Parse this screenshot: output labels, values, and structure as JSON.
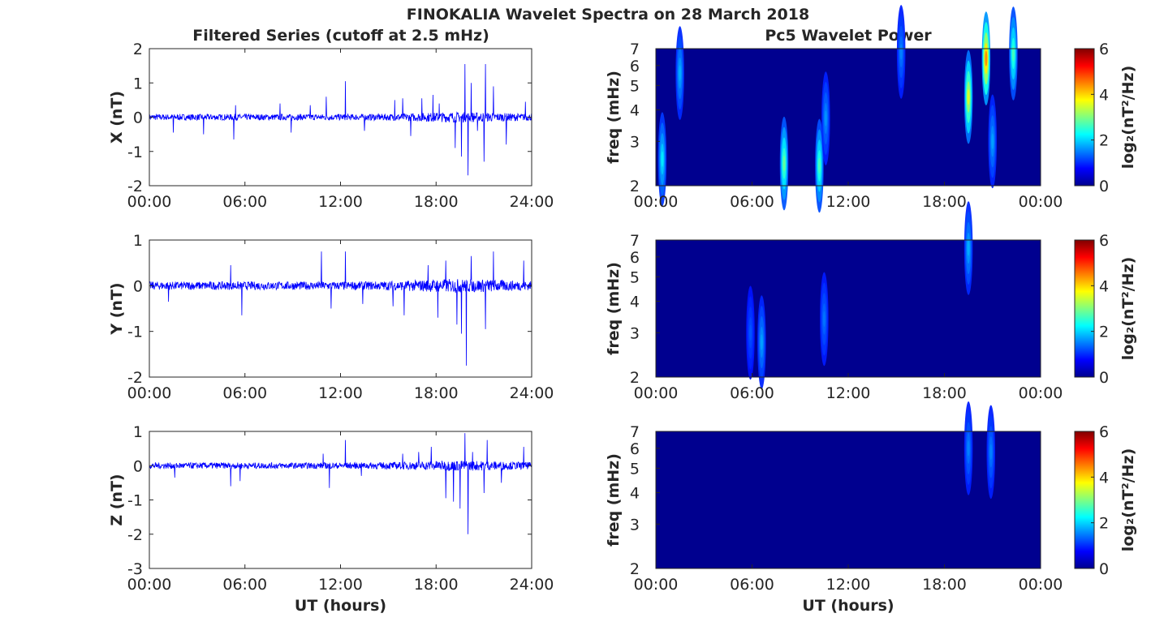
{
  "figure_title": "FINOKALIA Wavelet Spectra on 28 March 2018",
  "left_column_title": "Filtered Series (cutoff at 2.5 mHz)",
  "right_column_title": "Pc5 Wavelet Power",
  "colors": {
    "series": "#0000ff",
    "axis": "#262626",
    "background_power": "#00008f"
  },
  "chart_data": [
    {
      "type": "line",
      "title": "Filtered Series (cutoff at 2.5 mHz)",
      "ylabel": "X (nT)",
      "xlabel": "",
      "xlim": [
        0,
        24
      ],
      "ylim": [
        -2,
        2
      ],
      "x_ticks": [
        "00:00",
        "06:00",
        "12:00",
        "18:00",
        "24:00"
      ],
      "y_ticks": [
        "-2",
        "-1",
        "0",
        "1",
        "2"
      ],
      "noise_amplitude": 0.1,
      "spikes": [
        [
          1.5,
          -0.45
        ],
        [
          3.4,
          -0.5
        ],
        [
          5.3,
          -0.65
        ],
        [
          5.4,
          0.35
        ],
        [
          8.2,
          0.4
        ],
        [
          8.9,
          -0.45
        ],
        [
          10.1,
          0.35
        ],
        [
          11.1,
          0.6
        ],
        [
          12.3,
          1.05
        ],
        [
          13.5,
          -0.4
        ],
        [
          15.4,
          0.5
        ],
        [
          15.9,
          0.55
        ],
        [
          16.4,
          -0.55
        ],
        [
          17.1,
          0.55
        ],
        [
          17.8,
          0.65
        ],
        [
          18.2,
          0.4
        ],
        [
          19.2,
          -0.9
        ],
        [
          19.6,
          -1.15
        ],
        [
          19.8,
          1.55
        ],
        [
          20.0,
          -1.7
        ],
        [
          20.2,
          1.0
        ],
        [
          20.6,
          -0.4
        ],
        [
          21.0,
          -1.3
        ],
        [
          21.1,
          1.55
        ],
        [
          21.6,
          0.9
        ],
        [
          22.4,
          -0.8
        ],
        [
          23.6,
          0.45
        ]
      ]
    },
    {
      "type": "line",
      "ylabel": "Y (nT)",
      "xlabel": "",
      "xlim": [
        0,
        24
      ],
      "ylim": [
        -2,
        1
      ],
      "x_ticks": [
        "00:00",
        "06:00",
        "12:00",
        "18:00",
        "24:00"
      ],
      "y_ticks": [
        "-2",
        "-1",
        "0",
        "1"
      ],
      "noise_amplitude": 0.1,
      "spikes": [
        [
          1.2,
          -0.35
        ],
        [
          5.1,
          0.45
        ],
        [
          5.8,
          -0.65
        ],
        [
          10.8,
          0.75
        ],
        [
          11.4,
          -0.5
        ],
        [
          12.3,
          0.75
        ],
        [
          13.4,
          -0.4
        ],
        [
          15.3,
          -0.45
        ],
        [
          16.0,
          -0.65
        ],
        [
          17.5,
          0.45
        ],
        [
          18.1,
          -0.7
        ],
        [
          18.6,
          0.55
        ],
        [
          19.3,
          -0.85
        ],
        [
          19.6,
          -1.05
        ],
        [
          19.9,
          -1.75
        ],
        [
          20.2,
          0.65
        ],
        [
          21.1,
          -0.95
        ],
        [
          21.6,
          0.75
        ],
        [
          23.5,
          0.55
        ]
      ]
    },
    {
      "type": "line",
      "ylabel": "Z (nT)",
      "xlabel": "UT (hours)",
      "xlim": [
        0,
        24
      ],
      "ylim": [
        -3,
        1
      ],
      "x_ticks": [
        "00:00",
        "06:00",
        "12:00",
        "18:00",
        "24:00"
      ],
      "y_ticks": [
        "-3",
        "-2",
        "-1",
        "0",
        "1"
      ],
      "noise_amplitude": 0.1,
      "spikes": [
        [
          1.6,
          -0.35
        ],
        [
          5.1,
          -0.6
        ],
        [
          5.7,
          -0.45
        ],
        [
          10.9,
          0.35
        ],
        [
          11.3,
          -0.65
        ],
        [
          12.3,
          0.75
        ],
        [
          13.3,
          -0.3
        ],
        [
          15.9,
          0.35
        ],
        [
          16.9,
          0.4
        ],
        [
          17.7,
          0.55
        ],
        [
          18.6,
          -0.95
        ],
        [
          19.1,
          -1.05
        ],
        [
          19.5,
          -1.25
        ],
        [
          19.8,
          0.95
        ],
        [
          20.0,
          -2.0
        ],
        [
          20.3,
          0.4
        ],
        [
          21.0,
          -0.8
        ],
        [
          21.2,
          0.75
        ],
        [
          22.1,
          -0.5
        ],
        [
          23.5,
          0.55
        ]
      ]
    },
    {
      "type": "heatmap",
      "title": "Pc5 Wavelet Power",
      "ylabel": "freq (mHz)",
      "xlabel": "",
      "xlim": [
        0,
        24
      ],
      "ylim": [
        2,
        7
      ],
      "yscale": "log",
      "x_ticks": [
        "00:00",
        "06:00",
        "12:00",
        "18:00",
        "00:00"
      ],
      "y_ticks": [
        "2",
        "3",
        "4",
        "5",
        "6",
        "7"
      ],
      "colorbar_label": "log₂(nT²/Hz)",
      "clim": [
        0,
        6
      ],
      "colorbar_ticks": [
        "0",
        "2",
        "4",
        "6"
      ],
      "features": [
        {
          "t": 0.4,
          "f": 2.55,
          "peak": 1.6
        },
        {
          "t": 1.5,
          "f": 5.6,
          "peak": 1.2
        },
        {
          "t": 8.0,
          "f": 2.45,
          "peak": 2.4
        },
        {
          "t": 10.2,
          "f": 2.4,
          "peak": 2.2
        },
        {
          "t": 10.6,
          "f": 3.7,
          "peak": 1.0
        },
        {
          "t": 15.3,
          "f": 6.8,
          "peak": 0.9
        },
        {
          "t": 19.5,
          "f": 4.5,
          "peak": 3.2
        },
        {
          "t": 20.6,
          "f": 6.4,
          "peak": 4.2
        },
        {
          "t": 21.0,
          "f": 3.0,
          "peak": 1.1
        },
        {
          "t": 22.3,
          "f": 6.7,
          "peak": 2.2
        }
      ]
    },
    {
      "type": "heatmap",
      "ylabel": "freq (mHz)",
      "xlabel": "",
      "xlim": [
        0,
        24
      ],
      "ylim": [
        2,
        7
      ],
      "yscale": "log",
      "x_ticks": [
        "00:00",
        "06:00",
        "12:00",
        "18:00",
        "00:00"
      ],
      "y_ticks": [
        "2",
        "3",
        "4",
        "5",
        "6",
        "7"
      ],
      "colorbar_label": "log₂(nT²/Hz)",
      "clim": [
        0,
        6
      ],
      "colorbar_ticks": [
        "0",
        "2",
        "4",
        "6"
      ],
      "features": [
        {
          "t": 5.9,
          "f": 3.0,
          "peak": 0.6
        },
        {
          "t": 6.6,
          "f": 2.75,
          "peak": 1.1
        },
        {
          "t": 10.5,
          "f": 3.4,
          "peak": 0.8
        },
        {
          "t": 19.5,
          "f": 6.5,
          "peak": 1.2
        }
      ]
    },
    {
      "type": "heatmap",
      "ylabel": "freq (mHz)",
      "xlabel": "UT (hours)",
      "xlim": [
        0,
        24
      ],
      "ylim": [
        2,
        7
      ],
      "yscale": "log",
      "x_ticks": [
        "00:00",
        "06:00",
        "12:00",
        "18:00",
        "00:00"
      ],
      "y_ticks": [
        "2",
        "3",
        "4",
        "5",
        "6",
        "7"
      ],
      "colorbar_label": "log₂(nT²/Hz)",
      "clim": [
        0,
        6
      ],
      "colorbar_ticks": [
        "0",
        "2",
        "4",
        "6"
      ],
      "features": [
        {
          "t": 19.5,
          "f": 6.0,
          "peak": 0.9
        },
        {
          "t": 20.9,
          "f": 5.8,
          "peak": 0.9
        }
      ]
    }
  ]
}
